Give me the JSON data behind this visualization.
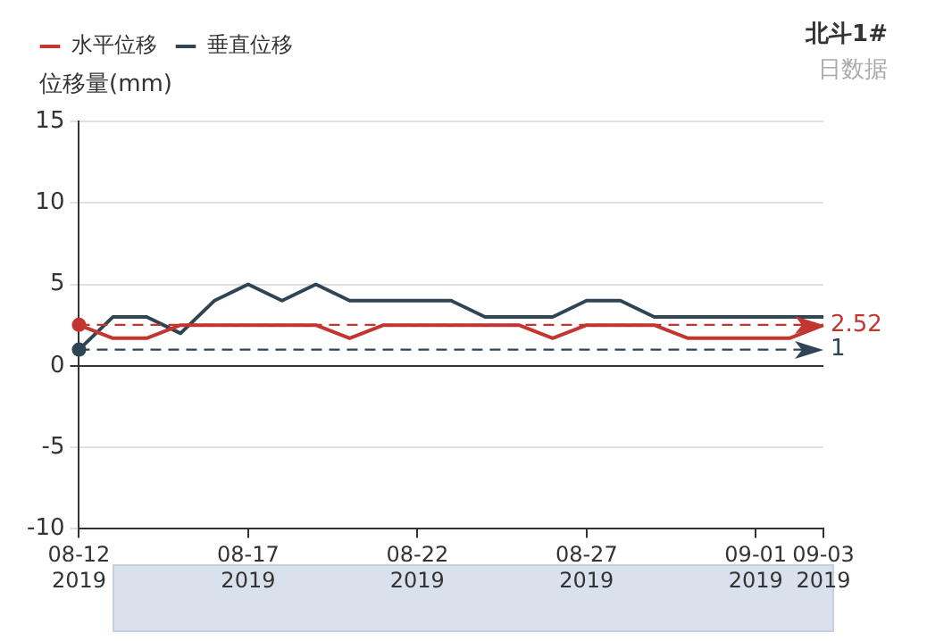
{
  "chart_data": {
    "type": "line",
    "title": "北斗1#",
    "subtitle": "日数据",
    "ylabel": "位移量(mm)",
    "categories": [
      "08-12\n2019",
      null,
      null,
      null,
      null,
      "08-17\n2019",
      null,
      null,
      null,
      null,
      "08-22\n2019",
      null,
      null,
      null,
      null,
      "08-27\n2019",
      null,
      null,
      null,
      null,
      "09-01\n2019",
      null,
      "09-03\n2019"
    ],
    "series": [
      {
        "name": "水平位移",
        "color": "#c23531",
        "values": [
          2.5,
          1.7,
          1.7,
          2.5,
          2.5,
          2.5,
          2.5,
          2.5,
          1.7,
          2.5,
          2.5,
          2.5,
          2.5,
          2.5,
          1.7,
          2.5,
          2.5,
          2.5,
          1.7,
          1.7,
          1.7,
          1.7,
          2.5
        ]
      },
      {
        "name": "垂直位移",
        "color": "#2f4554",
        "values": [
          1,
          3,
          3,
          2,
          4,
          5,
          4,
          5,
          4,
          4,
          4,
          4,
          3,
          3,
          3,
          4,
          4,
          3,
          3,
          3,
          3,
          3,
          3
        ]
      }
    ],
    "ylim": [
      -10,
      15
    ],
    "yticks": [
      -10,
      -5,
      0,
      5,
      10,
      15
    ],
    "grid": "y",
    "legend": "top left",
    "marker": "none",
    "line_style": "solid",
    "ref_lines": [
      {
        "axis": "y",
        "value": 2.52,
        "label": "2.52",
        "color": "#c23531",
        "line_style": "dashed"
      },
      {
        "axis": "y",
        "value": 1,
        "label": "1",
        "color": "#2f4554",
        "line_style": "dashed"
      }
    ]
  }
}
